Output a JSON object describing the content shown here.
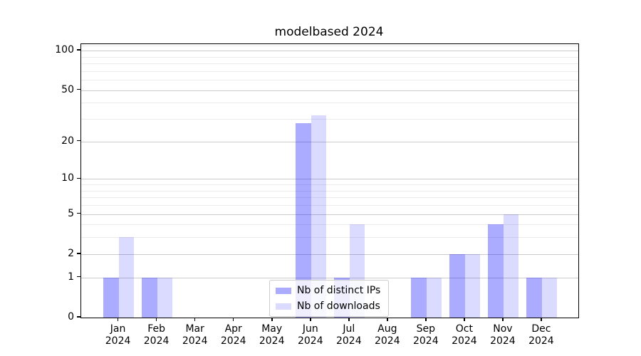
{
  "title": "modelbased 2024",
  "chart_data": {
    "type": "bar",
    "title": "modelbased 2024",
    "categories": [
      "Jan",
      "Feb",
      "Mar",
      "Apr",
      "May",
      "Jun",
      "Jul",
      "Aug",
      "Sep",
      "Oct",
      "Nov",
      "Dec"
    ],
    "year_label": "2024",
    "series": [
      {
        "name": "Nb of distinct IPs",
        "color": "rgba(0,0,255,0.33)",
        "values": [
          1,
          1,
          0,
          0,
          0,
          28,
          1,
          0,
          1,
          2,
          4,
          1
        ]
      },
      {
        "name": "Nb of downloads",
        "color": "rgba(0,0,255,0.14)",
        "values": [
          3,
          1,
          0,
          0,
          0,
          32,
          4,
          0,
          1,
          2,
          5,
          1
        ]
      }
    ],
    "yscale": "log1p",
    "ylim": [
      0,
      112
    ],
    "yticks": [
      100,
      50,
      20,
      10,
      5,
      2,
      1,
      0
    ],
    "ytick_labels": [
      "100",
      "50",
      "20",
      "10",
      "5",
      "2",
      "1",
      "0"
    ],
    "minor_yticks": [
      3,
      4,
      6,
      7,
      8,
      9,
      30,
      40,
      60,
      70,
      80,
      90,
      110
    ],
    "grid": true,
    "legend_position": "lower-center-inside"
  },
  "colors": {
    "major_grid": "#cbcbcb",
    "minor_grid": "#ececec",
    "frame": "#000000",
    "text": "#000000"
  }
}
